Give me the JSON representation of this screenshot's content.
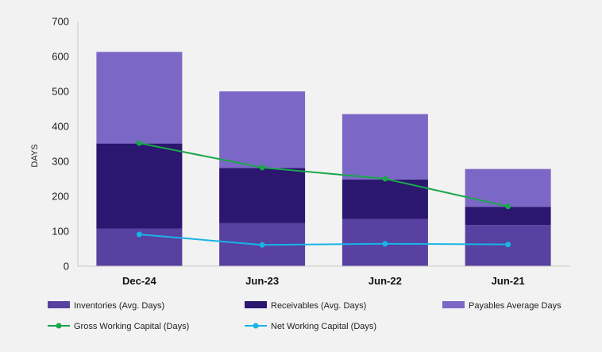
{
  "chart_data": {
    "type": "bar",
    "stacked": true,
    "categories": [
      "Dec-24",
      "Jun-23",
      "Jun-22",
      "Jun-21"
    ],
    "ylabel": "DAYS",
    "ylim": [
      0,
      700
    ],
    "yticks": [
      "0",
      "100",
      "200",
      "300",
      "400",
      "500",
      "600",
      "700"
    ],
    "grid": false,
    "legend_position": "bottom",
    "series": [
      {
        "name": "Inventories (Avg. Days)",
        "kind": "bar",
        "color": "#5841a0",
        "values": [
          108,
          123,
          135,
          118
        ]
      },
      {
        "name": "Receivables (Avg. Days)",
        "kind": "bar",
        "color": "#2b1670",
        "values": [
          243,
          158,
          113,
          52
        ]
      },
      {
        "name": "Payables Average Days",
        "kind": "bar",
        "color": "#7b68c6",
        "values": [
          262,
          219,
          187,
          108
        ]
      },
      {
        "name": "Gross Working Capital (Days)",
        "kind": "line",
        "color": "#1aa64b",
        "values": [
          352,
          282,
          250,
          171
        ]
      },
      {
        "name": "Net Working Capital (Days)",
        "kind": "line",
        "color": "#18b4e6",
        "values": [
          91,
          61,
          64,
          62
        ]
      }
    ]
  }
}
